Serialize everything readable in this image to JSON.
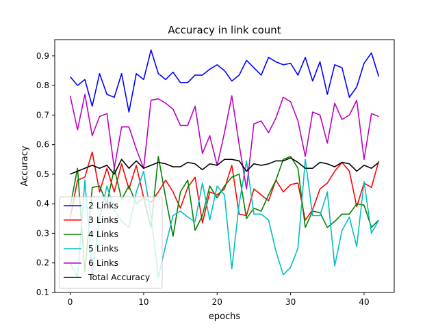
{
  "chart_data": {
    "type": "line",
    "title": "Accuracy in link count",
    "xlabel": "epochs",
    "ylabel": "Accuracy",
    "xlim": [
      -2.1,
      44.1
    ],
    "ylim": [
      0.1,
      0.955
    ],
    "xticks": [
      0,
      10,
      20,
      30,
      40
    ],
    "xtick_labels": [
      "0",
      "10",
      "20",
      "30",
      "40"
    ],
    "yticks": [
      0.1,
      0.2,
      0.3,
      0.4,
      0.5,
      0.6,
      0.7,
      0.8,
      0.9
    ],
    "ytick_labels": [
      "0.1",
      "0.2",
      "0.3",
      "0.4",
      "0.5",
      "0.6",
      "0.7",
      "0.8",
      "0.9"
    ],
    "grid": false,
    "legend_position": "lower-left",
    "x": [
      0,
      1,
      2,
      3,
      4,
      5,
      6,
      7,
      8,
      9,
      10,
      11,
      12,
      13,
      14,
      15,
      16,
      17,
      18,
      19,
      20,
      21,
      22,
      23,
      24,
      25,
      26,
      27,
      28,
      29,
      30,
      31,
      32,
      33,
      34,
      35,
      36,
      37,
      38,
      39,
      40,
      41,
      42
    ],
    "series": [
      {
        "name": "2 Links",
        "color": "#0000ff",
        "values": [
          0.83,
          0.8,
          0.82,
          0.73,
          0.84,
          0.77,
          0.76,
          0.84,
          0.71,
          0.84,
          0.82,
          0.92,
          0.84,
          0.82,
          0.845,
          0.81,
          0.81,
          0.835,
          0.835,
          0.855,
          0.87,
          0.85,
          0.815,
          0.835,
          0.885,
          0.86,
          0.835,
          0.895,
          0.88,
          0.87,
          0.875,
          0.835,
          0.895,
          0.815,
          0.88,
          0.77,
          0.87,
          0.86,
          0.76,
          0.795,
          0.875,
          0.91,
          0.83
        ]
      },
      {
        "name": "3 Links",
        "color": "#ff0000",
        "values": [
          0.35,
          0.48,
          0.49,
          0.575,
          0.44,
          0.52,
          0.44,
          0.535,
          0.45,
          0.53,
          0.42,
          0.405,
          0.44,
          0.48,
          0.44,
          0.385,
          0.455,
          0.49,
          0.335,
          0.44,
          0.43,
          0.45,
          0.53,
          0.365,
          0.36,
          0.45,
          0.43,
          0.41,
          0.48,
          0.44,
          0.465,
          0.47,
          0.345,
          0.38,
          0.45,
          0.47,
          0.51,
          0.54,
          0.51,
          0.39,
          0.47,
          0.455,
          0.545
        ]
      },
      {
        "name": "4 Links",
        "color": "#008000",
        "values": [
          0.39,
          0.52,
          0.17,
          0.455,
          0.46,
          0.4,
          0.52,
          0.415,
          0.46,
          0.4,
          0.42,
          0.32,
          0.56,
          0.42,
          0.29,
          0.44,
          0.48,
          0.31,
          0.36,
          0.46,
          0.42,
          0.46,
          0.49,
          0.5,
          0.35,
          0.385,
          0.375,
          0.43,
          0.48,
          0.55,
          0.56,
          0.52,
          0.32,
          0.375,
          0.37,
          0.32,
          0.34,
          0.365,
          0.365,
          0.4,
          0.395,
          0.32,
          0.345
        ]
      },
      {
        "name": "5 Links",
        "color": "#00bfbf",
        "values": [
          0.2,
          0.15,
          0.48,
          0.16,
          0.35,
          0.46,
          0.38,
          0.34,
          0.32,
          0.44,
          0.51,
          0.36,
          0.15,
          0.26,
          0.36,
          0.375,
          0.355,
          0.34,
          0.47,
          0.345,
          0.46,
          0.43,
          0.18,
          0.4,
          0.545,
          0.365,
          0.365,
          0.345,
          0.24,
          0.16,
          0.185,
          0.25,
          0.55,
          0.36,
          0.36,
          0.44,
          0.19,
          0.31,
          0.355,
          0.255,
          0.475,
          0.3,
          0.345
        ]
      },
      {
        "name": "6 Links",
        "color": "#bf00bf",
        "values": [
          0.765,
          0.65,
          0.77,
          0.63,
          0.695,
          0.705,
          0.52,
          0.66,
          0.66,
          0.585,
          0.52,
          0.75,
          0.755,
          0.74,
          0.72,
          0.665,
          0.665,
          0.73,
          0.57,
          0.63,
          0.53,
          0.64,
          0.765,
          0.6,
          0.45,
          0.67,
          0.68,
          0.64,
          0.69,
          0.76,
          0.745,
          0.68,
          0.56,
          0.71,
          0.7,
          0.605,
          0.74,
          0.685,
          0.7,
          0.75,
          0.55,
          0.705,
          0.695
        ]
      },
      {
        "name": "Total Accuracy",
        "color": "#000000",
        "values": [
          0.5,
          0.51,
          0.52,
          0.53,
          0.52,
          0.53,
          0.5,
          0.55,
          0.52,
          0.545,
          0.52,
          0.53,
          0.54,
          0.535,
          0.525,
          0.525,
          0.54,
          0.535,
          0.515,
          0.535,
          0.53,
          0.55,
          0.55,
          0.545,
          0.51,
          0.535,
          0.53,
          0.535,
          0.545,
          0.545,
          0.555,
          0.54,
          0.52,
          0.52,
          0.54,
          0.535,
          0.525,
          0.54,
          0.535,
          0.51,
          0.53,
          0.52,
          0.54
        ]
      }
    ]
  }
}
